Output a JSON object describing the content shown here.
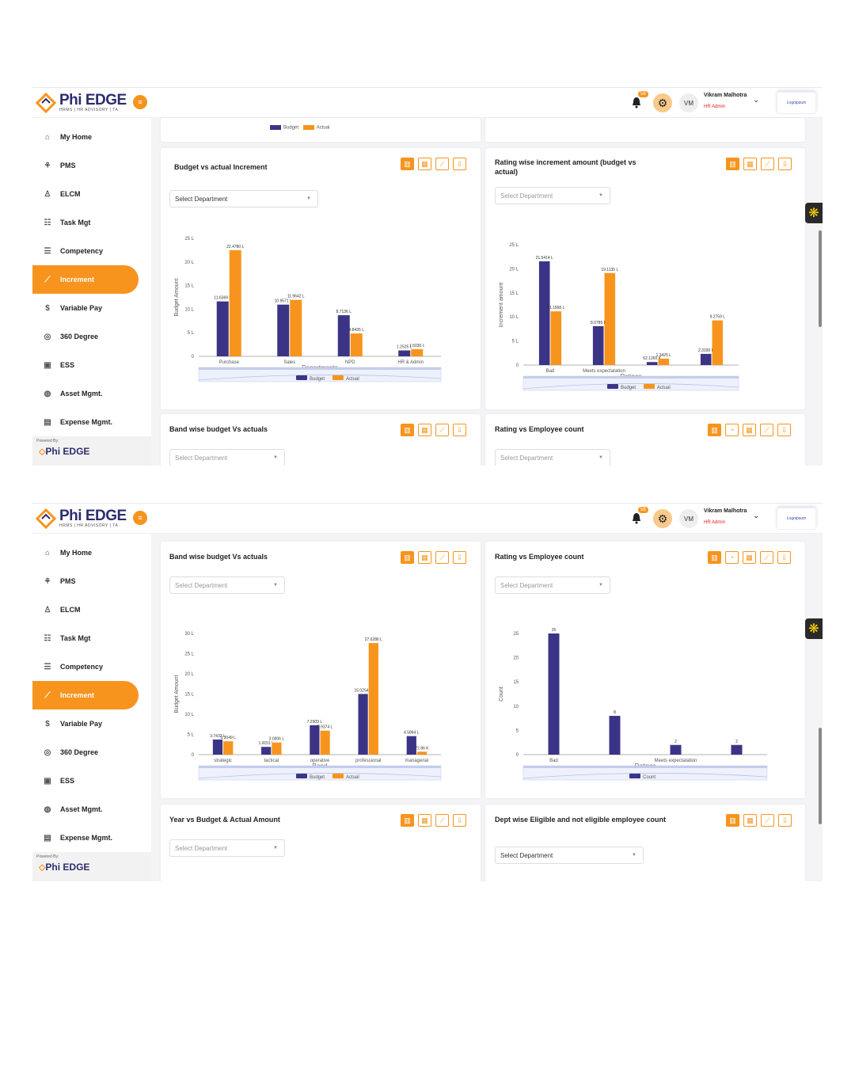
{
  "app": {
    "logo_title": "Phi EDGE",
    "logo_subtitle": "HRMS | HR ADVISORY | TA",
    "notification_count": "58",
    "avatar_initials": "VM",
    "user_name": "Vikram Malhotra",
    "user_role": "HR Admin",
    "client_logo": "Logoipsum",
    "powered_by": "Powered By:",
    "nav": [
      {
        "label": "My Home",
        "icon": "home-icon"
      },
      {
        "label": "PMS",
        "icon": "pms-icon"
      },
      {
        "label": "ELCM",
        "icon": "people-icon"
      },
      {
        "label": "Task Mgt",
        "icon": "task-icon"
      },
      {
        "label": "Competency",
        "icon": "list-icon"
      },
      {
        "label": "Increment",
        "icon": "increment-chart-icon",
        "active": true
      },
      {
        "label": "Variable Pay",
        "icon": "dollar-icon"
      },
      {
        "label": "360 Degree",
        "icon": "360-icon"
      },
      {
        "label": "ESS",
        "icon": "ess-icon"
      },
      {
        "label": "Asset Mgmt.",
        "icon": "asset-icon"
      },
      {
        "label": "Expense Mgmt.",
        "icon": "expense-icon"
      }
    ]
  },
  "colors": {
    "budget": "#3b3486",
    "actual": "#f7941d",
    "accent": "#f7941d",
    "count": "#3b3486"
  },
  "legend": {
    "budget": "Budget",
    "actual": "Actual",
    "count": "Count"
  },
  "panels": {
    "budget_vs_actual_increment": {
      "title": "Budget vs actual Increment",
      "select": "Select Department"
    },
    "rating_wise_increment": {
      "title": "Rating wise increment amount (budget vs actual)",
      "select": "Select Department"
    },
    "band_wise": {
      "title": "Band wise budget Vs actuals",
      "select": "Select Department"
    },
    "rating_vs_count": {
      "title": "Rating vs Employee count",
      "select": "Select Department"
    },
    "year_vs_budget": {
      "title": "Year vs Budget & Actual Amount",
      "select": "Select Department"
    },
    "dept_eligible": {
      "title": "Dept wise Eligible and not eligible employee count",
      "select": "Select Department"
    }
  },
  "chart_data": [
    {
      "id": "dept",
      "type": "bar",
      "xlabel": "Departments",
      "ylabel": "Budget Amount",
      "yticks": [
        "0",
        "5 L",
        "10 L",
        "15 L",
        "20 L",
        "25 L"
      ],
      "ylim": [
        0,
        25
      ],
      "categories": [
        "Purchase",
        "Sales",
        "NPD",
        "HR & Admin"
      ],
      "series": [
        {
          "name": "Budget",
          "values": [
            11.6369,
            10.9571,
            8.7136,
            1.2525
          ],
          "labels": [
            "11.6369 L",
            "10.9571 L",
            "8.7136 L",
            "1.2525 L"
          ]
        },
        {
          "name": "Actual",
          "values": [
            22.478,
            11.9642,
            4.8435,
            1.503
          ],
          "labels": [
            "22.4780 L",
            "11.9642 L",
            "4.8435 L",
            "1.5030 L"
          ]
        }
      ]
    },
    {
      "id": "rating",
      "type": "bar",
      "xlabel": "Ratings",
      "ylabel": "Increment amount",
      "yticks": [
        "0",
        "5 L",
        "10 L",
        "15 L",
        "20 L",
        "25 L"
      ],
      "ylim": [
        0,
        25
      ],
      "categories": [
        "Bad",
        "Meets expectatation",
        "",
        ""
      ],
      "series": [
        {
          "name": "Budget",
          "values": [
            21.5414,
            8.0785,
            0.621265,
            2.319
          ],
          "labels": [
            "21.5414 L",
            "8.0785 L",
            "62.1265 K",
            "2.3190 L"
          ]
        },
        {
          "name": "Actual",
          "values": [
            11.1568,
            19.1135,
            1.3425,
            9.2759
          ],
          "labels": [
            "11.1568 L",
            "19.1135 L",
            "1.3425 L",
            "9.2759 L"
          ]
        }
      ]
    },
    {
      "id": "band",
      "type": "bar",
      "xlabel": "Band",
      "ylabel": "Budget Amount",
      "yticks": [
        "0",
        "5 L",
        "10 L",
        "15 L",
        "20 L",
        "25 L",
        "30 L"
      ],
      "ylim": [
        0,
        30
      ],
      "categories": [
        "strategic",
        "tactical",
        "operative",
        "professional",
        "managerial"
      ],
      "series": [
        {
          "name": "Budget",
          "values": [
            3.7432,
            1.9151,
            7.2909,
            15.0254,
            4.5864
          ],
          "labels": [
            "3.7432 L",
            "1.9151 L",
            "7.2909 L",
            "15.0254 L",
            "4.5864 L"
          ]
        },
        {
          "name": "Actual",
          "values": [
            3.3049,
            3.0006,
            5.9374,
            27.6286,
            0.7286
          ],
          "labels": [
            "3.3049 L",
            "3.0006 L",
            "5.9374 L",
            "27.6286 L",
            "72.86 K"
          ]
        }
      ]
    },
    {
      "id": "count",
      "type": "bar",
      "xlabel": "Ratings",
      "ylabel": "Count",
      "yticks": [
        "0",
        "5",
        "10",
        "15",
        "20",
        "25"
      ],
      "ylim": [
        0,
        25
      ],
      "categories": [
        "Bad",
        "",
        "Meets expectatation",
        ""
      ],
      "series": [
        {
          "name": "Count",
          "values": [
            25,
            8,
            2,
            2
          ],
          "labels": [
            "25",
            "8",
            "2",
            "2"
          ]
        }
      ]
    }
  ]
}
